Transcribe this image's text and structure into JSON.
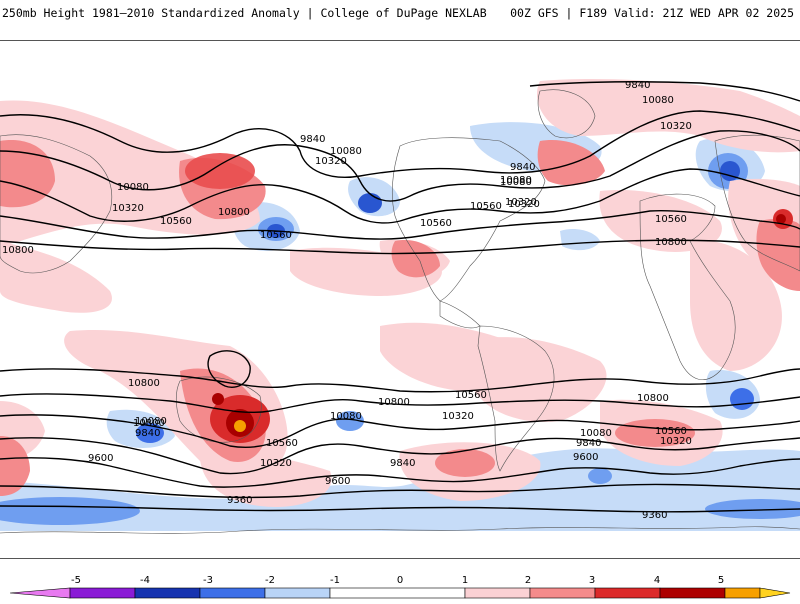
{
  "header": {
    "title_left": "250mb Height 1981–2010 Standardized Anomaly | College of DuPage NEXLAB",
    "title_right": "00Z GFS | F189 Valid: 21Z WED APR 02 2025"
  },
  "map": {
    "variable": "250mb Height",
    "contour_labels": [
      "9840",
      "10080",
      "10320",
      "10080",
      "10320",
      "10560",
      "10080",
      "10320",
      "10560",
      "10800",
      "10800",
      "10560",
      "9840",
      "10080",
      "10320",
      "10560",
      "10800",
      "9840",
      "10080",
      "10320",
      "10560",
      "10800",
      "10080",
      "9840",
      "10800",
      "10560",
      "10320",
      "9600",
      "10080",
      "10800",
      "10560",
      "10320",
      "9840",
      "9600",
      "9360",
      "10080",
      "9840",
      "9600",
      "10800",
      "10560",
      "10320",
      "9360"
    ]
  },
  "colorbar": {
    "labels": [
      "-5",
      "-4",
      "-3",
      "-2",
      "-1",
      "0",
      "1",
      "2",
      "3",
      "4",
      "5"
    ],
    "colors": [
      "#e879f0",
      "#8a1bd6",
      "#1633b0",
      "#3d6fe8",
      "#b9d4f7",
      "#ffffff",
      "#fbd1d4",
      "#f58b8b",
      "#dc2a2a",
      "#ad0000",
      "#f7a000",
      "#ffd21f"
    ]
  },
  "colors": {
    "neg_light": "#c6dcf8",
    "neg_mid": "#6f9ef0",
    "neg_strong": "#2956d0",
    "pos_light": "#fbd3d6",
    "pos_mid": "#f38a8c",
    "pos_strong": "#d92b2b",
    "pos_extreme": "#a80000",
    "pos_orange": "#f5a000"
  }
}
